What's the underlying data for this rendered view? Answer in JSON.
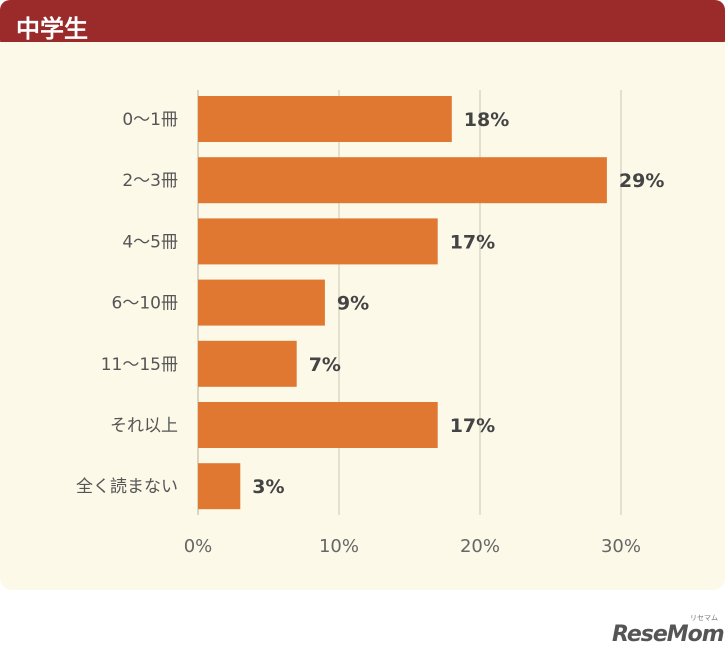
{
  "header": {
    "title": "中学生"
  },
  "chart_data": {
    "type": "bar",
    "orientation": "horizontal",
    "categories": [
      "0～1冊",
      "2～3冊",
      "4～5冊",
      "6～10冊",
      "11～15冊",
      "それ以上",
      "全く読まない"
    ],
    "values": [
      18,
      29,
      17,
      9,
      7,
      17,
      3
    ],
    "value_labels": [
      "18%",
      "29%",
      "17%",
      "9%",
      "7%",
      "17%",
      "3%"
    ],
    "x_ticks": [
      0,
      10,
      20,
      30
    ],
    "x_tick_labels": [
      "0%",
      "10%",
      "20%",
      "30%"
    ],
    "xlim": [
      0,
      37
    ],
    "grid": "vertical",
    "bar_color": "#e07832",
    "title": "中学生",
    "xlabel": "",
    "ylabel": ""
  },
  "logo": {
    "text": "ReseMom",
    "sub": "リセマム"
  },
  "colors": {
    "header": "#9b2a2a",
    "panel": "#fcf9e9",
    "bar": "#e07832",
    "grid": "#d9d6c8"
  }
}
